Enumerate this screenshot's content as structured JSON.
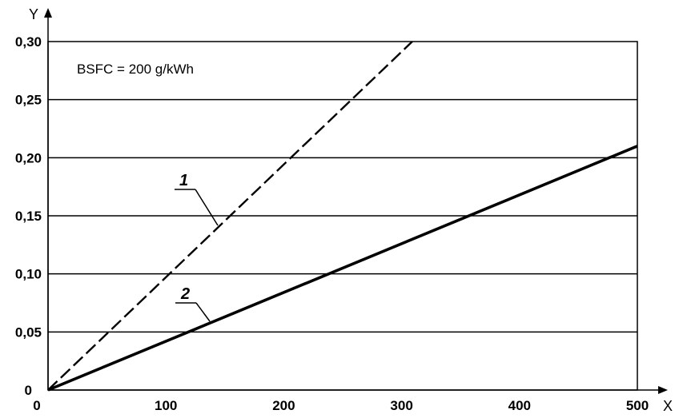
{
  "chart_data": {
    "type": "line",
    "xlabel": "X",
    "ylabel": "Y",
    "xlim": [
      0,
      500
    ],
    "ylim": [
      0,
      0.3
    ],
    "x_ticks": [
      "0",
      "100",
      "200",
      "300",
      "400",
      "500"
    ],
    "y_ticks": [
      "0",
      "0,05",
      "0,10",
      "0,15",
      "0,20",
      "0,25",
      "0,30"
    ],
    "grid": "horizontal",
    "annotation": "BSFC = 200 g/kWh",
    "series": [
      {
        "name": "1",
        "style": "dashed",
        "x": [
          0,
          309
        ],
        "y": [
          0,
          0.3
        ]
      },
      {
        "name": "2",
        "style": "solid",
        "x": [
          0,
          500
        ],
        "y": [
          0,
          0.21
        ]
      }
    ]
  },
  "colors": {
    "line": "#000000",
    "grid": "#000000",
    "background": "#ffffff"
  }
}
